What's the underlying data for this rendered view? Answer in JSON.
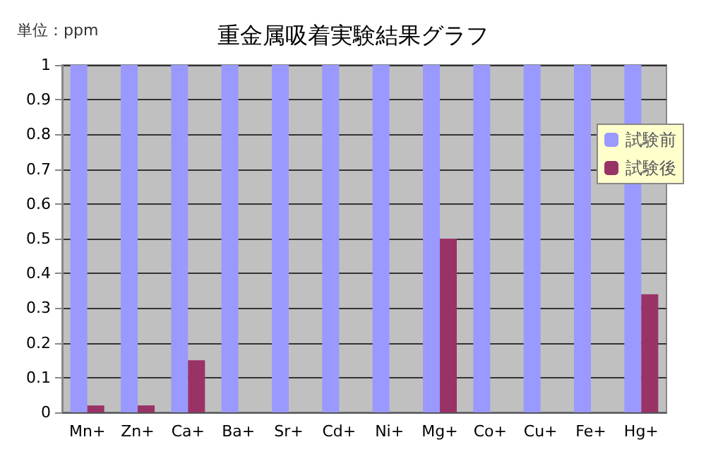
{
  "chart_data": {
    "type": "bar",
    "title": "重金属吸着実験結果グラフ",
    "annotations": [
      "単位：ppm"
    ],
    "categories": [
      "Mn+",
      "Zn+",
      "Ca+",
      "Ba+",
      "Sr+",
      "Cd+",
      "Ni+",
      "Mg+",
      "Co+",
      "Cu+",
      "Fe+",
      "Hg+"
    ],
    "series": [
      {
        "name": "試験前",
        "color": "#9999ff",
        "values": [
          1,
          1,
          1,
          1,
          1,
          1,
          1,
          1,
          1,
          1,
          1,
          1
        ]
      },
      {
        "name": "試験後",
        "color": "#993366",
        "values": [
          0.02,
          0.02,
          0.15,
          0,
          0,
          0,
          0,
          0.5,
          0,
          0,
          0,
          0.34
        ]
      }
    ],
    "ylim": [
      0,
      1
    ],
    "yticks": [
      0,
      0.1,
      0.2,
      0.3,
      0.4,
      0.5,
      0.6,
      0.7,
      0.8,
      0.9,
      1
    ],
    "grid": "y",
    "legend": "right"
  }
}
